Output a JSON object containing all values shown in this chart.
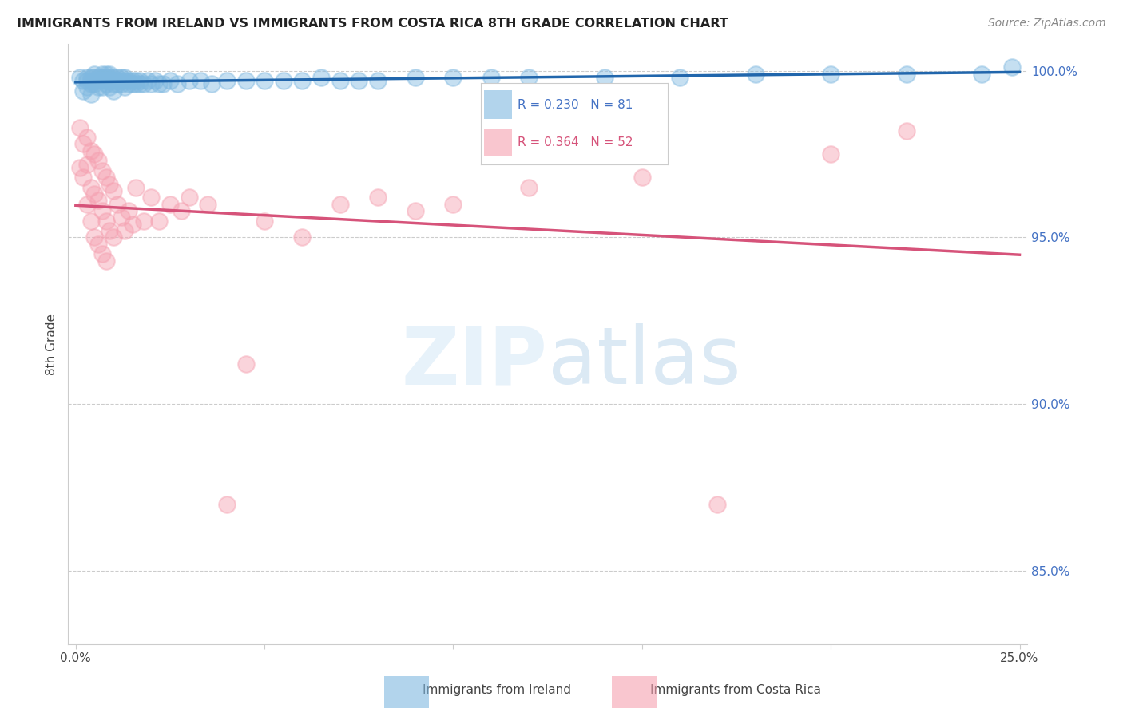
{
  "title": "IMMIGRANTS FROM IRELAND VS IMMIGRANTS FROM COSTA RICA 8TH GRADE CORRELATION CHART",
  "source": "Source: ZipAtlas.com",
  "ylabel": "8th Grade",
  "xlim": [
    -0.002,
    0.252
  ],
  "ylim": [
    0.828,
    1.008
  ],
  "xticks": [
    0.0,
    0.05,
    0.1,
    0.15,
    0.2,
    0.25
  ],
  "xtick_labels": [
    "0.0%",
    "",
    "",
    "",
    "",
    "25.0%"
  ],
  "yticks": [
    0.85,
    0.9,
    0.95,
    1.0
  ],
  "ytick_labels_right": [
    "85.0%",
    "90.0%",
    "95.0%",
    "100.0%"
  ],
  "ireland_R": 0.23,
  "ireland_N": 81,
  "costarica_R": 0.364,
  "costarica_N": 52,
  "ireland_color": "#7fb8e0",
  "costarica_color": "#f5a0b0",
  "ireland_line_color": "#2166ac",
  "costarica_line_color": "#d6537a",
  "ireland_x": [
    0.001,
    0.002,
    0.002,
    0.003,
    0.003,
    0.003,
    0.004,
    0.004,
    0.004,
    0.004,
    0.005,
    0.005,
    0.005,
    0.005,
    0.006,
    0.006,
    0.006,
    0.007,
    0.007,
    0.007,
    0.007,
    0.008,
    0.008,
    0.008,
    0.008,
    0.009,
    0.009,
    0.009,
    0.009,
    0.01,
    0.01,
    0.01,
    0.01,
    0.011,
    0.011,
    0.011,
    0.012,
    0.012,
    0.012,
    0.013,
    0.013,
    0.013,
    0.014,
    0.014,
    0.015,
    0.015,
    0.016,
    0.016,
    0.017,
    0.017,
    0.018,
    0.019,
    0.02,
    0.021,
    0.022,
    0.023,
    0.025,
    0.027,
    0.03,
    0.033,
    0.036,
    0.04,
    0.045,
    0.05,
    0.055,
    0.06,
    0.065,
    0.07,
    0.075,
    0.08,
    0.09,
    0.1,
    0.11,
    0.12,
    0.14,
    0.16,
    0.18,
    0.2,
    0.22,
    0.24,
    0.248
  ],
  "ireland_y": [
    0.998,
    0.997,
    0.994,
    0.998,
    0.997,
    0.995,
    0.998,
    0.997,
    0.996,
    0.993,
    0.999,
    0.998,
    0.997,
    0.996,
    0.998,
    0.997,
    0.995,
    0.999,
    0.998,
    0.997,
    0.995,
    0.999,
    0.998,
    0.997,
    0.996,
    0.999,
    0.998,
    0.997,
    0.995,
    0.998,
    0.997,
    0.996,
    0.994,
    0.998,
    0.997,
    0.996,
    0.998,
    0.997,
    0.996,
    0.998,
    0.997,
    0.995,
    0.997,
    0.996,
    0.997,
    0.996,
    0.997,
    0.996,
    0.997,
    0.996,
    0.996,
    0.997,
    0.996,
    0.997,
    0.996,
    0.996,
    0.997,
    0.996,
    0.997,
    0.997,
    0.996,
    0.997,
    0.997,
    0.997,
    0.997,
    0.997,
    0.998,
    0.997,
    0.997,
    0.997,
    0.998,
    0.998,
    0.998,
    0.998,
    0.998,
    0.998,
    0.999,
    0.999,
    0.999,
    0.999,
    1.001
  ],
  "costarica_x": [
    0.001,
    0.001,
    0.002,
    0.002,
    0.003,
    0.003,
    0.003,
    0.004,
    0.004,
    0.004,
    0.005,
    0.005,
    0.005,
    0.006,
    0.006,
    0.006,
    0.007,
    0.007,
    0.007,
    0.008,
    0.008,
    0.008,
    0.009,
    0.009,
    0.01,
    0.01,
    0.011,
    0.012,
    0.013,
    0.014,
    0.015,
    0.016,
    0.018,
    0.02,
    0.022,
    0.025,
    0.028,
    0.03,
    0.035,
    0.04,
    0.045,
    0.05,
    0.06,
    0.07,
    0.08,
    0.09,
    0.1,
    0.12,
    0.15,
    0.17,
    0.2,
    0.22
  ],
  "costarica_y": [
    0.983,
    0.971,
    0.978,
    0.968,
    0.98,
    0.972,
    0.96,
    0.976,
    0.965,
    0.955,
    0.975,
    0.963,
    0.95,
    0.973,
    0.961,
    0.948,
    0.97,
    0.958,
    0.945,
    0.968,
    0.955,
    0.943,
    0.966,
    0.952,
    0.964,
    0.95,
    0.96,
    0.956,
    0.952,
    0.958,
    0.954,
    0.965,
    0.955,
    0.962,
    0.955,
    0.96,
    0.958,
    0.962,
    0.96,
    0.87,
    0.912,
    0.955,
    0.95,
    0.96,
    0.962,
    0.958,
    0.96,
    0.965,
    0.968,
    0.87,
    0.975,
    0.982
  ]
}
